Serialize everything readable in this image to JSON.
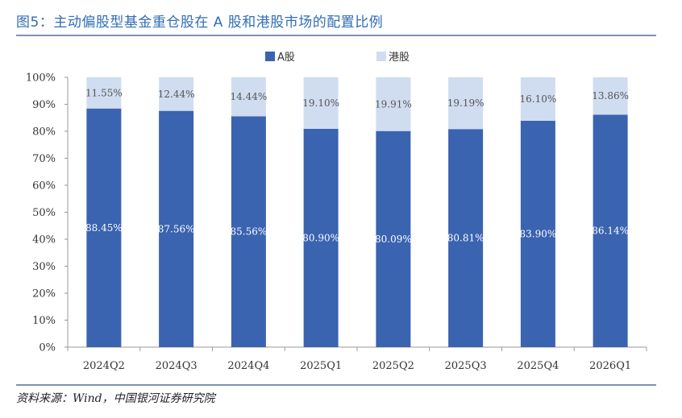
{
  "title": "图5：主动偏股型基金重仓股在 A 股和港股市场的配置比例",
  "source": "资料来源：Wind，中国银河证券研究院",
  "colors": {
    "a_share": "#3a63b0",
    "hk_share": "#d0ddf0",
    "title": "#2f6db5"
  },
  "chart_data": {
    "type": "bar",
    "stacked": true,
    "title": "",
    "categories": [
      "2024Q2",
      "2024Q3",
      "2024Q4",
      "2025Q1",
      "2025Q2",
      "2025Q3",
      "2025Q4",
      "2026Q1"
    ],
    "series": [
      {
        "name": "A股",
        "values": [
          88.45,
          87.56,
          85.56,
          80.9,
          80.09,
          80.81,
          83.9,
          86.14
        ],
        "labels": [
          "88.45%",
          "87.56%",
          "85.56%",
          "80.90%",
          "80.09%",
          "80.81%",
          "83.90%",
          "86.14%"
        ]
      },
      {
        "name": "港股",
        "values": [
          11.55,
          12.44,
          14.44,
          19.1,
          19.91,
          19.19,
          16.1,
          13.86
        ],
        "labels": [
          "11.55%",
          "12.44%",
          "14.44%",
          "19.10%",
          "19.91%",
          "19.19%",
          "16.10%",
          "13.86%"
        ]
      }
    ],
    "ylim": [
      0,
      100
    ],
    "yticks": [
      "0%",
      "10%",
      "20%",
      "30%",
      "40%",
      "50%",
      "60%",
      "70%",
      "80%",
      "90%",
      "100%"
    ],
    "legend_position": "top-center",
    "xlabel": "",
    "ylabel": ""
  }
}
